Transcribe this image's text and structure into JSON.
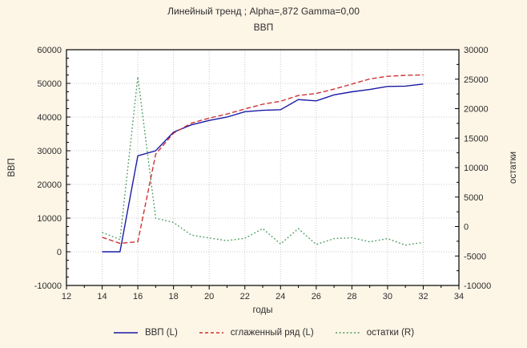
{
  "title": "Линейный тренд ; Alpha=,872 Gamma=0,00",
  "subtitle": "ВВП",
  "axes": {
    "x_label": "годы",
    "y_left_label": "ВВП",
    "y_right_label": "остатки",
    "x_ticks": [
      12,
      14,
      16,
      18,
      20,
      22,
      24,
      26,
      28,
      30,
      32,
      34
    ],
    "y_left_ticks": [
      -10000,
      0,
      10000,
      20000,
      30000,
      40000,
      50000,
      60000
    ],
    "y_right_ticks": [
      -10000,
      -5000,
      0,
      5000,
      10000,
      15000,
      20000,
      25000,
      30000
    ]
  },
  "colors": {
    "background": "#fdf5e6",
    "plot_background": "#ffffff",
    "grid": "#c8c8c8",
    "axis": "#000000",
    "text": "#2e2e2e",
    "series_blue": "#1a1aa6",
    "series_red": "#cc3333",
    "series_green": "#4f9d63"
  },
  "chart_data": {
    "type": "line",
    "x": [
      14,
      15,
      16,
      17,
      18,
      19,
      20,
      21,
      22,
      23,
      24,
      25,
      26,
      27,
      28,
      29,
      30,
      31,
      32
    ],
    "series": [
      {
        "name": "ВВП (L)",
        "axis": "left",
        "style": "solid",
        "color": "#1a1aa6",
        "values": [
          0,
          0,
          28500,
          30000,
          35500,
          37700,
          39000,
          40000,
          41600,
          42000,
          42200,
          45200,
          44800,
          46600,
          47500,
          48200,
          49100,
          49200,
          49800
        ]
      },
      {
        "name": "сглаженный ряд (L)",
        "axis": "left",
        "style": "dashed",
        "color": "#cc3333",
        "values": [
          4300,
          2500,
          3000,
          29000,
          35200,
          38200,
          39700,
          40900,
          42400,
          43800,
          44700,
          46400,
          47000,
          48300,
          49800,
          51300,
          52100,
          52400,
          52500
        ]
      },
      {
        "name": "остатки (R)",
        "axis": "right",
        "style": "dotted",
        "color": "#4f9d63",
        "values": [
          -1000,
          -2200,
          25400,
          1400,
          700,
          -1450,
          -1950,
          -2400,
          -2000,
          -350,
          -2950,
          -350,
          -3050,
          -2050,
          -1900,
          -2600,
          -2050,
          -3150,
          -2700
        ]
      }
    ],
    "x_range": [
      12,
      34
    ],
    "y_left_range": [
      -10000,
      60000
    ],
    "y_right_range": [
      -10000,
      30000
    ],
    "grid": true,
    "legend_position": "bottom"
  }
}
